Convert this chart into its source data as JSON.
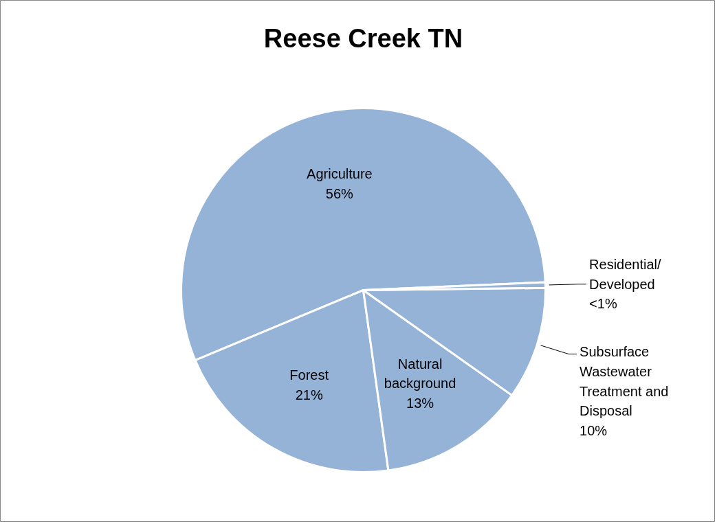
{
  "chart_data": {
    "type": "pie",
    "title": "Reese Creek TN",
    "categories": [
      "Agriculture",
      "Forest",
      "Natural background",
      "Subsurface Wastewater Treatment and Disposal",
      "Residential/ Developed"
    ],
    "values": [
      55.6,
      20.9,
      13,
      10,
      0.5
    ],
    "colors": [
      "#95b3d7",
      "#95b3d7",
      "#95b3d7",
      "#95b3d7",
      "#95b3d7"
    ],
    "value_labels": [
      "56%",
      "21%",
      "13%",
      "10%",
      "<1%"
    ]
  }
}
